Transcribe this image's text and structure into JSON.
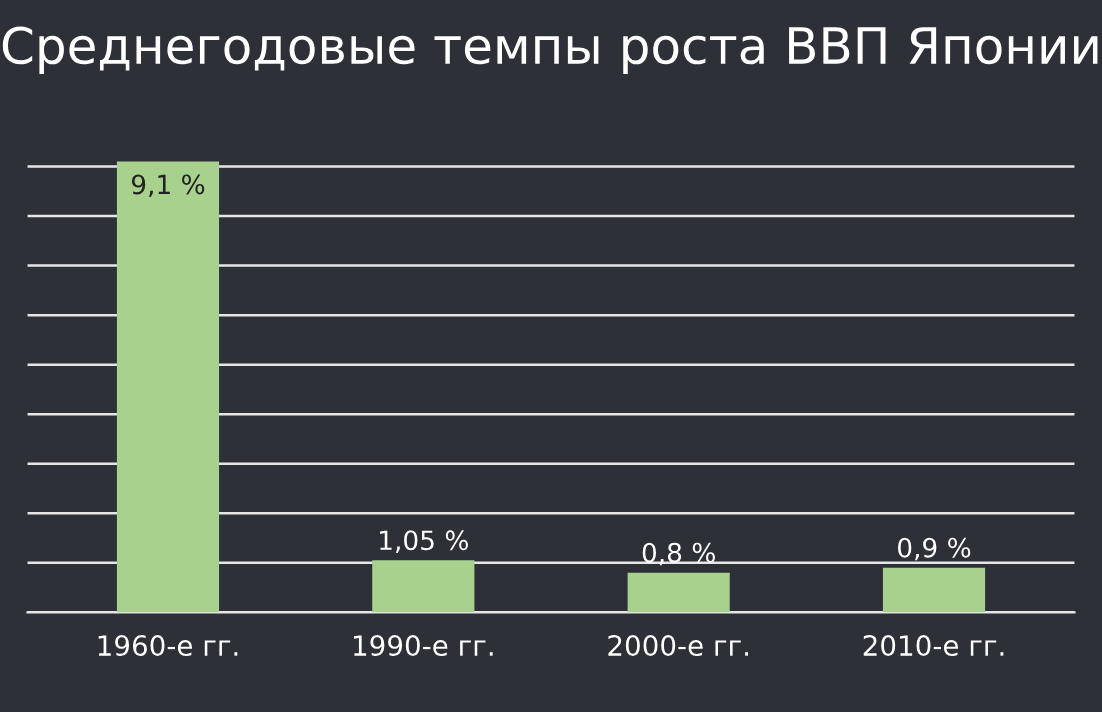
{
  "chart_data": {
    "type": "bar",
    "title": "Среднегодовые темпы роста ВВП Японии",
    "categories": [
      "1960-е гг.",
      "1990-е гг.",
      "2000-е гг.",
      "2010-е гг."
    ],
    "values": [
      9.1,
      1.05,
      0.8,
      0.9
    ],
    "value_labels": [
      "9,1 %",
      "1,05 %",
      "0,8 %",
      "0,9 %"
    ],
    "color": "#a9d18e",
    "ylim": [
      0,
      9.2
    ],
    "yticks": [
      {
        "value": 0,
        "label": null
      },
      {
        "value": 1,
        "label": null
      },
      {
        "value": 2,
        "label": null
      },
      {
        "value": 3,
        "label": null
      },
      {
        "value": 4,
        "label": null
      },
      {
        "value": 5,
        "label": null
      },
      {
        "value": 6,
        "label": null
      },
      {
        "value": 7,
        "label": null
      },
      {
        "value": 8,
        "label": null
      },
      {
        "value": 9,
        "label": null
      }
    ],
    "tick_labels": "x",
    "grid": "y"
  }
}
